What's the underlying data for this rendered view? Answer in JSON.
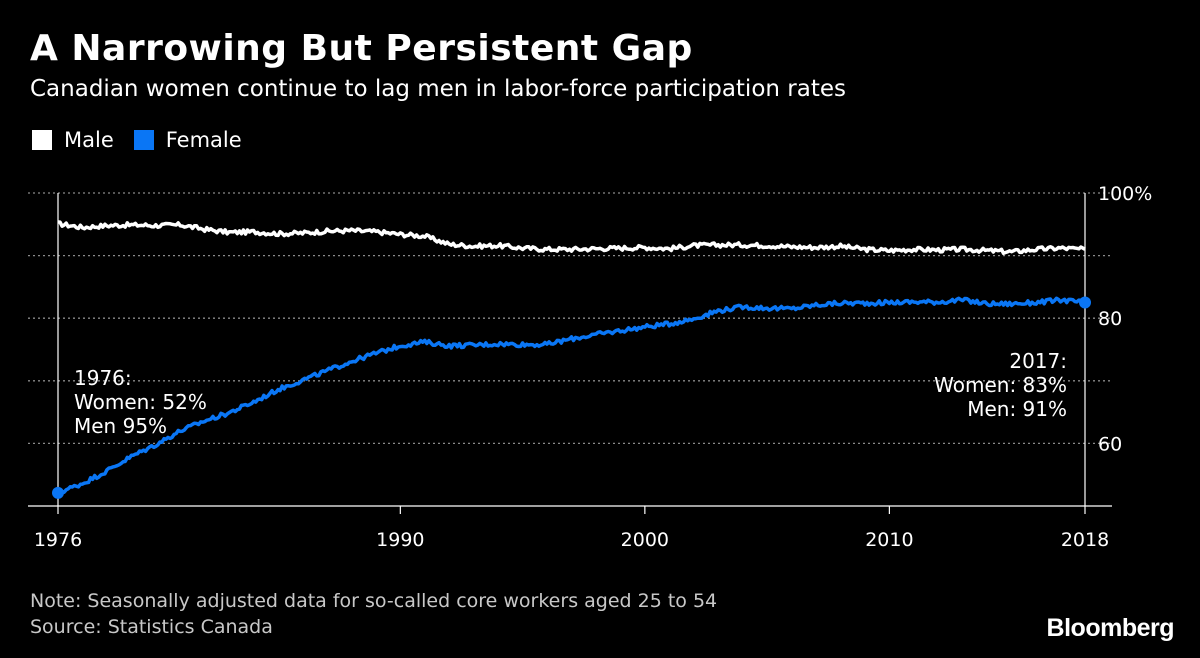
{
  "header": {
    "title": "A Narrowing But Persistent Gap",
    "subtitle": "Canadian women continue to lag men in labor-force participation rates"
  },
  "legend": [
    {
      "label": "Male",
      "color": "#ffffff"
    },
    {
      "label": "Female",
      "color": "#0a76f5"
    }
  ],
  "footer": {
    "note": "Note: Seasonally adjusted data for so-called core workers aged 25 to 54",
    "source": "Source: Statistics Canada",
    "brand": "Bloomberg"
  },
  "chart_data": {
    "type": "line",
    "xlim": [
      1976,
      2018
    ],
    "ylim": [
      50,
      100
    ],
    "x_ticks": [
      1976,
      1990,
      2000,
      2010,
      2018
    ],
    "x_tick_labels": [
      "1976",
      "1990",
      "2000",
      "2010",
      "2018"
    ],
    "y_ticks": [
      60,
      70,
      80,
      90,
      100
    ],
    "y_tick_labels": [
      "60",
      "",
      "80",
      "",
      "100%"
    ],
    "grid": "horizontal-dotted",
    "legend_position": "top-left",
    "series": [
      {
        "name": "Male",
        "color": "#ffffff",
        "x": [
          1976,
          1977,
          1978,
          1979,
          1980,
          1981,
          1982,
          1983,
          1984,
          1985,
          1986,
          1987,
          1988,
          1989,
          1990,
          1991,
          1992,
          1993,
          1994,
          1995,
          1996,
          1997,
          1998,
          1999,
          2000,
          2001,
          2002,
          2003,
          2004,
          2005,
          2006,
          2007,
          2008,
          2009,
          2010,
          2011,
          2012,
          2013,
          2014,
          2015,
          2016,
          2017,
          2018
        ],
        "values": [
          95.1,
          94.5,
          94.8,
          94.9,
          94.8,
          94.9,
          94.2,
          93.7,
          93.8,
          93.5,
          93.6,
          93.9,
          94.0,
          93.8,
          93.4,
          93.1,
          91.8,
          91.5,
          91.6,
          91.2,
          91.0,
          91.0,
          91.1,
          91.2,
          91.3,
          91.1,
          91.6,
          91.7,
          91.7,
          91.6,
          91.4,
          91.3,
          91.5,
          91.0,
          90.8,
          91.0,
          90.9,
          91.0,
          90.8,
          90.6,
          91.0,
          91.2,
          91.0
        ]
      },
      {
        "name": "Female",
        "color": "#0a76f5",
        "x": [
          1976,
          1977,
          1978,
          1979,
          1980,
          1981,
          1982,
          1983,
          1984,
          1985,
          1986,
          1987,
          1988,
          1989,
          1990,
          1991,
          1992,
          1993,
          1994,
          1995,
          1996,
          1997,
          1998,
          1999,
          2000,
          2001,
          2002,
          2003,
          2004,
          2005,
          2006,
          2007,
          2008,
          2009,
          2010,
          2011,
          2012,
          2013,
          2014,
          2015,
          2016,
          2017,
          2018
        ],
        "values": [
          52.1,
          53.6,
          55.6,
          57.9,
          59.8,
          62.0,
          63.6,
          64.9,
          66.6,
          68.6,
          70.1,
          71.6,
          73.1,
          74.4,
          75.6,
          76.2,
          75.6,
          75.7,
          75.9,
          75.8,
          75.8,
          76.7,
          77.4,
          78.0,
          78.6,
          79.1,
          79.9,
          81.2,
          81.8,
          81.6,
          81.5,
          82.1,
          82.4,
          82.4,
          82.5,
          82.6,
          82.6,
          82.9,
          82.3,
          82.3,
          82.5,
          82.9,
          82.5
        ]
      }
    ],
    "annotations": [
      {
        "lines": [
          "1976:",
          "Women: 52%",
          "Men 95%"
        ]
      },
      {
        "lines": [
          "2017:",
          "Women: 83%",
          "Men: 91%"
        ]
      }
    ]
  }
}
